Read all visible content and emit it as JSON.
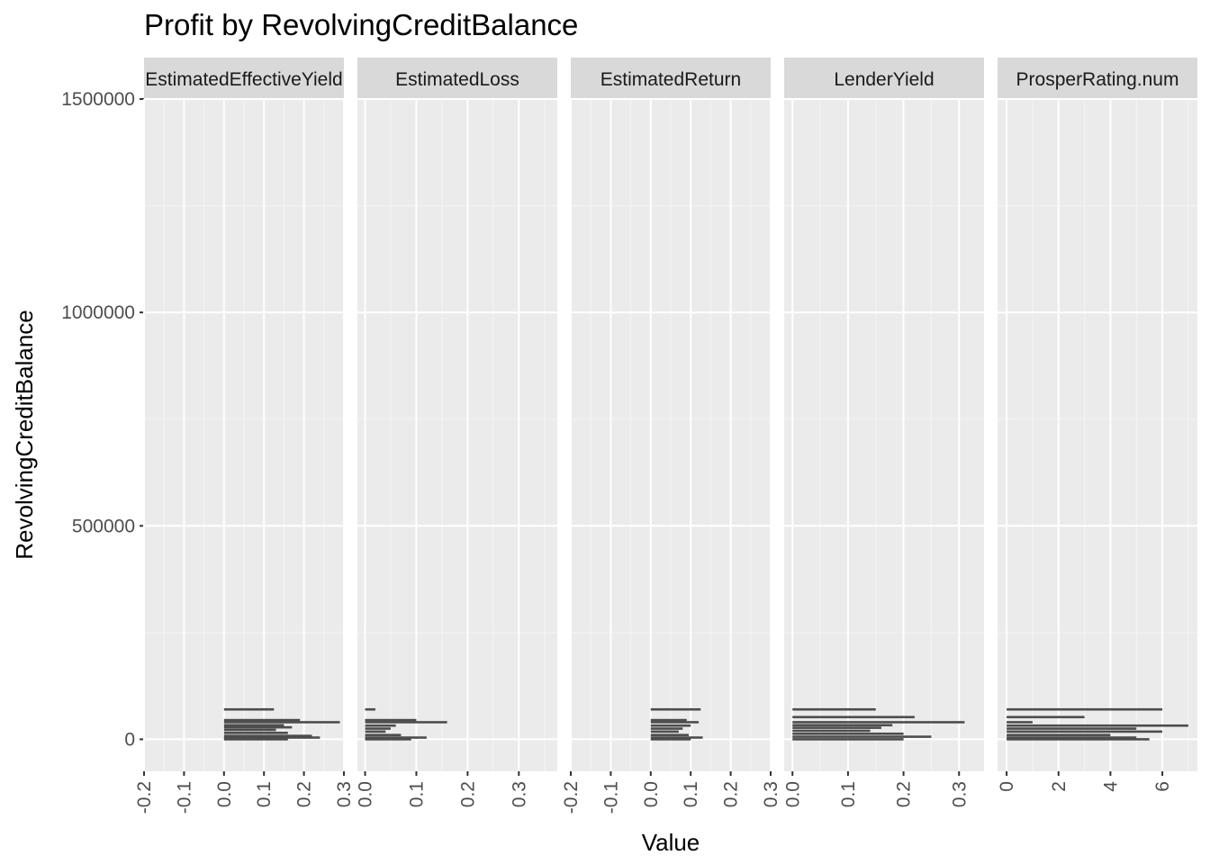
{
  "chart_data": {
    "type": "bar",
    "title": "Profit by RevolvingCreditBalance",
    "xlabel": "Value",
    "ylabel": "RevolvingCreditBalance",
    "ylim": [
      -75000,
      1500000
    ],
    "y_ticks": [
      0,
      500000,
      1000000,
      1500000
    ],
    "y_tick_labels": [
      "0",
      "500000",
      "1000000",
      "1500000"
    ],
    "grid": true,
    "bar_color": "#4d4d4d",
    "panels": [
      {
        "name": "EstimatedEffectiveYield",
        "strip_label": "EstimatedEffectiveYield",
        "xlim": [
          -0.2,
          0.3
        ],
        "x_ticks": [
          -0.2,
          -0.1,
          0.0,
          0.1,
          0.2,
          0.3
        ],
        "x_tick_labels": [
          "-0.2",
          "-0.1",
          "0.0",
          "0.1",
          "0.2",
          "0.3"
        ],
        "bars": [
          {
            "y": 70000,
            "value": 0.125
          },
          {
            "y": 45000,
            "value": 0.19
          },
          {
            "y": 40000,
            "value": 0.29
          },
          {
            "y": 33000,
            "value": 0.15
          },
          {
            "y": 28000,
            "value": 0.17
          },
          {
            "y": 22000,
            "value": 0.13
          },
          {
            "y": 15000,
            "value": 0.16
          },
          {
            "y": 8000,
            "value": 0.22
          },
          {
            "y": 4000,
            "value": 0.24
          },
          {
            "y": 0,
            "value": 0.16
          }
        ]
      },
      {
        "name": "EstimatedLoss",
        "strip_label": "EstimatedLoss",
        "xlim": [
          -0.015,
          0.375
        ],
        "x_ticks": [
          0.0,
          0.1,
          0.2,
          0.3
        ],
        "x_tick_labels": [
          "0.0",
          "0.1",
          "0.2",
          "0.3"
        ],
        "bars": [
          {
            "y": 70000,
            "value": 0.02
          },
          {
            "y": 45000,
            "value": 0.1
          },
          {
            "y": 40000,
            "value": 0.16
          },
          {
            "y": 32000,
            "value": 0.06
          },
          {
            "y": 25000,
            "value": 0.05
          },
          {
            "y": 18000,
            "value": 0.04
          },
          {
            "y": 10000,
            "value": 0.07
          },
          {
            "y": 4000,
            "value": 0.12
          },
          {
            "y": 0,
            "value": 0.09
          }
        ]
      },
      {
        "name": "EstimatedReturn",
        "strip_label": "EstimatedReturn",
        "xlim": [
          -0.2,
          0.3
        ],
        "x_ticks": [
          -0.2,
          -0.1,
          0.0,
          0.1,
          0.2,
          0.3
        ],
        "x_tick_labels": [
          "-0.2",
          "-0.1",
          "0.0",
          "0.1",
          "0.2",
          "0.3"
        ],
        "bars": [
          {
            "y": 70000,
            "value": 0.125
          },
          {
            "y": 45000,
            "value": 0.09
          },
          {
            "y": 40000,
            "value": 0.12
          },
          {
            "y": 32000,
            "value": 0.1
          },
          {
            "y": 25000,
            "value": 0.08
          },
          {
            "y": 18000,
            "value": 0.07
          },
          {
            "y": 10000,
            "value": 0.095
          },
          {
            "y": 4000,
            "value": 0.13
          },
          {
            "y": 0,
            "value": 0.1
          }
        ]
      },
      {
        "name": "LenderYield",
        "strip_label": "LenderYield",
        "xlim": [
          -0.015,
          0.345
        ],
        "x_ticks": [
          0.0,
          0.1,
          0.2,
          0.3
        ],
        "x_tick_labels": [
          "0.0",
          "0.1",
          "0.2",
          "0.3"
        ],
        "bars": [
          {
            "y": 70000,
            "value": 0.15
          },
          {
            "y": 52000,
            "value": 0.22
          },
          {
            "y": 40000,
            "value": 0.31
          },
          {
            "y": 33000,
            "value": 0.18
          },
          {
            "y": 27000,
            "value": 0.16
          },
          {
            "y": 20000,
            "value": 0.14
          },
          {
            "y": 13000,
            "value": 0.2
          },
          {
            "y": 6000,
            "value": 0.25
          },
          {
            "y": 0,
            "value": 0.2
          }
        ]
      },
      {
        "name": "ProsperRating.num",
        "strip_label": "ProsperRating.num",
        "xlim": [
          -0.35,
          7.35
        ],
        "x_ticks": [
          0,
          2,
          4,
          6
        ],
        "x_tick_labels": [
          "0",
          "2",
          "4",
          "6"
        ],
        "bars": [
          {
            "y": 70000,
            "value": 6.0
          },
          {
            "y": 52000,
            "value": 3.0
          },
          {
            "y": 40000,
            "value": 1.0
          },
          {
            "y": 32000,
            "value": 7.0
          },
          {
            "y": 25000,
            "value": 5.0
          },
          {
            "y": 18000,
            "value": 6.0
          },
          {
            "y": 10000,
            "value": 4.0
          },
          {
            "y": 4000,
            "value": 5.0
          },
          {
            "y": 0,
            "value": 5.5
          }
        ]
      }
    ]
  }
}
